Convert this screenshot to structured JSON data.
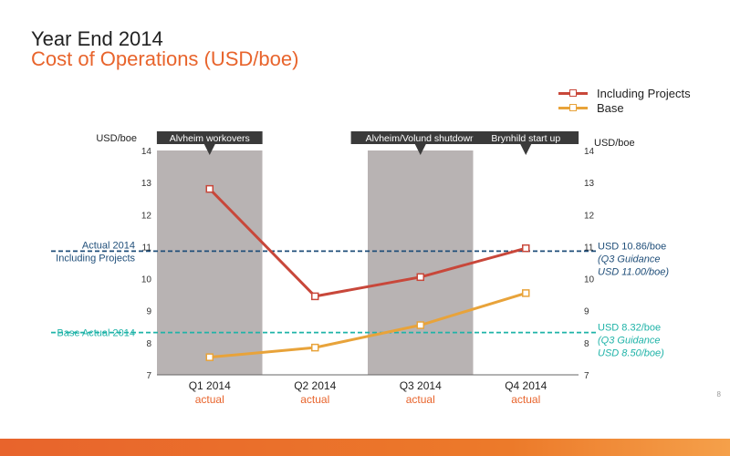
{
  "header": {
    "title": "Year End 2014",
    "subtitle": "Cost of Operations (USD/boe)"
  },
  "legend": {
    "items": [
      {
        "label": "Including Projects",
        "color": "#c8473a"
      },
      {
        "label": "Base",
        "color": "#e8a33a"
      }
    ]
  },
  "chart_data": {
    "type": "line",
    "categories": [
      "Q1 2014",
      "Q2 2014",
      "Q3 2014",
      "Q4 2014"
    ],
    "category_sublabels": [
      "actual",
      "actual",
      "actual",
      "actual"
    ],
    "series": [
      {
        "name": "Including Projects",
        "values": [
          12.8,
          9.45,
          10.05,
          10.95
        ],
        "color": "#c8473a"
      },
      {
        "name": "Base",
        "values": [
          7.55,
          7.85,
          8.55,
          9.55
        ],
        "color": "#e8a33a"
      }
    ],
    "ylabel_left": "USD/boe",
    "ylabel_right": "USD/boe",
    "ylim": [
      7,
      14
    ],
    "yticks": [
      7,
      8,
      9,
      10,
      11,
      12,
      13,
      14
    ],
    "shaded_categories": [
      0,
      2
    ],
    "callouts": [
      {
        "category": 0,
        "text": "Alvheim workovers"
      },
      {
        "category": 2,
        "text": "Alvheim/Volund shutdown"
      },
      {
        "category": 3,
        "text": "Brynhild start up"
      }
    ],
    "reference_lines": [
      {
        "value": 10.86,
        "color": "#1f4e79",
        "left_label": [
          "Actual 2014",
          "Including Projects"
        ],
        "right_label": [
          "USD 10.86/boe",
          "(Q3 Guidance",
          " USD 11.00/boe)"
        ]
      },
      {
        "value": 8.32,
        "color": "#1fb3a8",
        "left_label": [
          "Base Actual 2014"
        ],
        "right_label": [
          "USD 8.32/boe",
          "(Q3 Guidance",
          " USD 8.50/boe)"
        ]
      }
    ]
  },
  "footer": {
    "page_number": "8"
  }
}
